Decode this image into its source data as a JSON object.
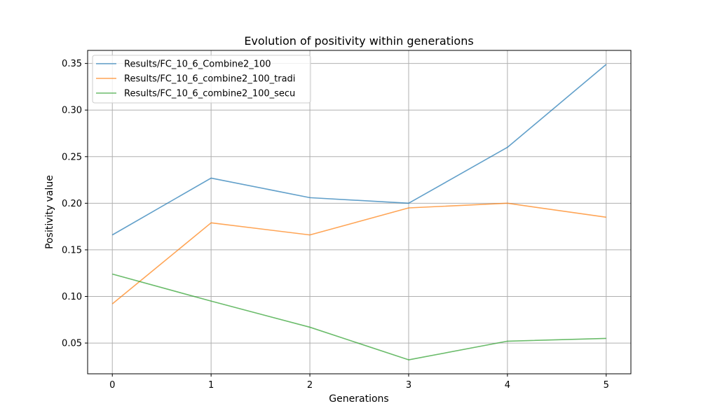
{
  "chart_data": {
    "type": "line",
    "title": "Evolution of positivity within generations",
    "xlabel": "Generations",
    "ylabel": "Positivity value",
    "x": [
      0,
      1,
      2,
      3,
      4,
      5
    ],
    "xticks": [
      "0",
      "1",
      "2",
      "3",
      "4",
      "5"
    ],
    "yticks": [
      "0.05",
      "0.10",
      "0.15",
      "0.20",
      "0.25",
      "0.30",
      "0.35"
    ],
    "xlim": [
      -0.25,
      5.25
    ],
    "ylim": [
      0.017,
      0.364
    ],
    "grid": true,
    "legend_position": "top-left",
    "series": [
      {
        "name": "Results/FC_10_6_Combine2_100",
        "color": "#1f77b4",
        "values": [
          0.166,
          0.227,
          0.206,
          0.2,
          0.26,
          0.349
        ]
      },
      {
        "name": "Results/FC_10_6_combine2_100_tradi",
        "color": "#ff7f0e",
        "values": [
          0.092,
          0.179,
          0.166,
          0.195,
          0.2,
          0.185
        ]
      },
      {
        "name": "Results/FC_10_6_combine2_100_secu",
        "color": "#2ca02c",
        "values": [
          0.124,
          0.095,
          0.067,
          0.032,
          0.052,
          0.055
        ]
      }
    ]
  }
}
